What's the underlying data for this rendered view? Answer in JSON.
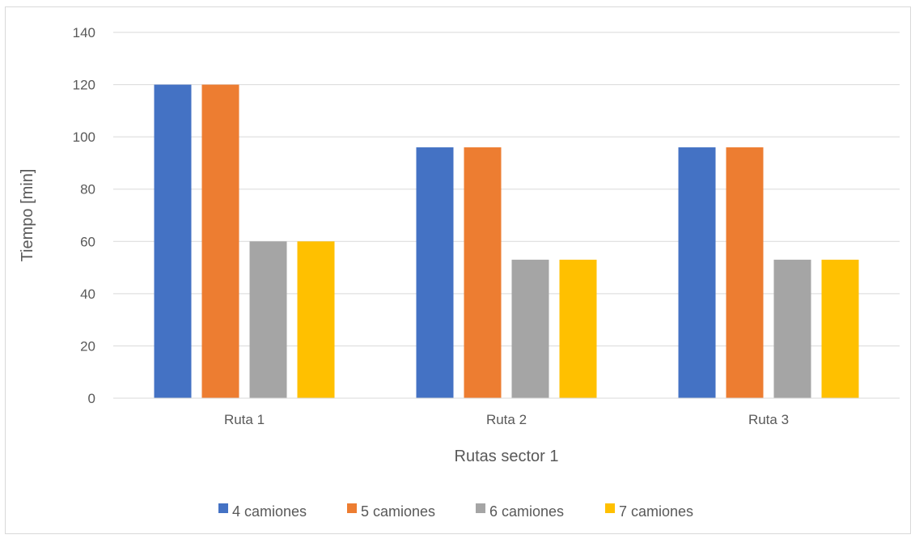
{
  "chart_data": {
    "type": "bar",
    "title": "",
    "xlabel": "Rutas sector 1",
    "ylabel": "Tiempo [min]",
    "categories": [
      "Ruta 1",
      "Ruta 2",
      "Ruta 3"
    ],
    "series": [
      {
        "name": "4 camiones",
        "color": "#4472C4",
        "values": [
          120,
          96,
          96
        ]
      },
      {
        "name": "5 camiones",
        "color": "#ED7D31",
        "values": [
          120,
          96,
          96
        ]
      },
      {
        "name": "6 camiones",
        "color": "#A5A5A5",
        "values": [
          60,
          53,
          53
        ]
      },
      {
        "name": "7 camiones",
        "color": "#FFC000",
        "values": [
          60,
          53,
          53
        ]
      }
    ],
    "ylim": [
      0,
      140
    ],
    "yticks": [
      0,
      20,
      40,
      60,
      80,
      100,
      120,
      140
    ],
    "grid": true,
    "legend": "bottom"
  }
}
